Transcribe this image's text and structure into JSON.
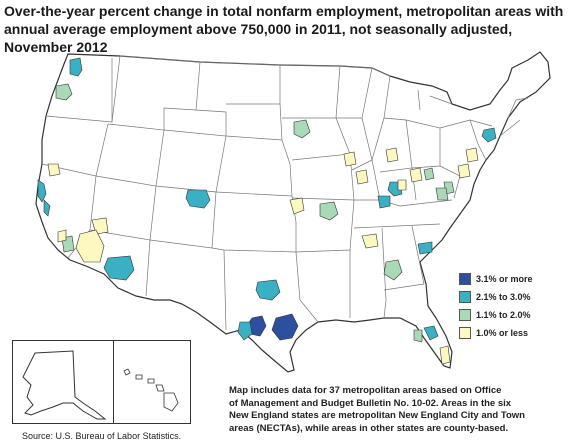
{
  "title": {
    "line1": "Over-the-year percent change in total nonfarm employment, metropolitan areas with",
    "line2": "annual average employment above 750,000 in 2011, not seasonally adjusted, November 2012"
  },
  "colors": {
    "cat1": "#2c4f9e",
    "cat2": "#3ab0c4",
    "cat3": "#a8dbb5",
    "cat4": "#fdf8c0",
    "land": "#ffffff",
    "border": "#333333"
  },
  "legend": {
    "items": [
      {
        "label": "3.1% or more",
        "color": "#2c4f9e"
      },
      {
        "label": "2.1% to 3.0%",
        "color": "#3ab0c4"
      },
      {
        "label": "1.1% to  2.0%",
        "color": "#a8dbb5"
      },
      {
        "label": "1.0% or less",
        "color": "#fdf8c0"
      }
    ]
  },
  "note": {
    "line1": "Map includes data for 37 metropolitan areas based on Office",
    "line2": "of Management and Budget Bulletin No. 10-02. Areas in the six",
    "line3": "New England states are metropolitan New England City and Town",
    "line4": " areas (NECTAs), while areas in other states are county-based."
  },
  "source": "Source:  U.S. Bureau of Labor Statistics."
}
